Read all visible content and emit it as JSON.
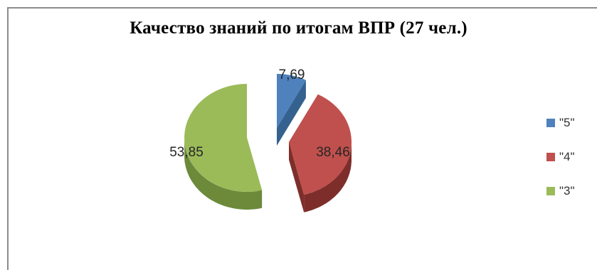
{
  "chart_data": {
    "type": "pie",
    "title": "Качество знаний по итогам ВПР (27 чел.)",
    "categories": [
      "\"5\"",
      "\"4\"",
      "\"3\""
    ],
    "values": [
      7.69,
      38.46,
      53.85
    ],
    "value_labels": [
      "7,69",
      "38,46",
      "53,85"
    ],
    "colors": [
      "#4f81bd",
      "#c0504d",
      "#9bbb59"
    ],
    "legend_position": "right",
    "style": "3d-exploded"
  }
}
